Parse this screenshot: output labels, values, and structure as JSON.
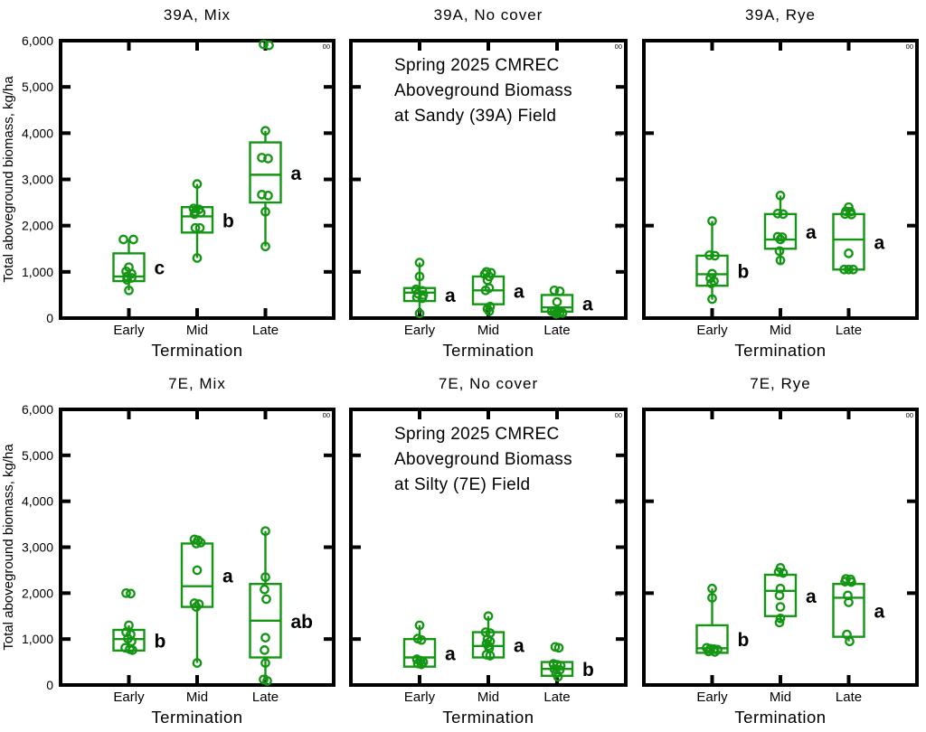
{
  "figure": {
    "accent_green": "#149614",
    "frame_color": "#000000",
    "background": "#ffffff"
  },
  "axes": {
    "x_label": "Termination",
    "x_categories": [
      "Early",
      "Mid",
      "Late"
    ],
    "y_label": "Total aboveground biomass, kg/ha",
    "y_range": [
      0,
      6000
    ],
    "y_tick_values": [
      6000,
      5000,
      4000,
      3000,
      2000,
      1000,
      0
    ],
    "y_tick_labels": [
      "6,000",
      "5,000",
      "4,000",
      "3,000",
      "2,000",
      "1,000",
      "0"
    ],
    "grid": false,
    "legend": "none"
  },
  "annotations": {
    "sandy": [
      "Spring 2025 CMREC",
      "Aboveground Biomass",
      "at Sandy (39A) Field"
    ],
    "silty": [
      "Spring 2025 CMREC",
      "Aboveground Biomass",
      "at Silty (7E) Field"
    ]
  },
  "chart_data": [
    {
      "type": "box",
      "title": "39A, Mix",
      "row": 0,
      "col": 0,
      "show_y_tick_labels": true,
      "show_y_axis_title": true,
      "annotation": null,
      "left_ticks": [
        1000,
        2000,
        3000,
        4000,
        5000
      ],
      "right_ticks": [
        1000,
        2000,
        3000,
        4000,
        5000
      ],
      "right_tiny_labels": [
        [
          6000,
          "00"
        ]
      ],
      "groups": [
        {
          "category": "Early",
          "letter": "c",
          "q1": 800,
          "median": 900,
          "q3": 1400,
          "whisker_low": 600,
          "whisker_high": 1700,
          "points": [
            [
              -6,
              1700
            ],
            [
              5,
              1700
            ],
            [
              0,
              1100
            ],
            [
              -3,
              1010
            ],
            [
              3,
              960
            ],
            [
              -2,
              900
            ],
            [
              3,
              870
            ],
            [
              -2,
              830
            ],
            [
              0,
              600
            ]
          ]
        },
        {
          "category": "Mid",
          "letter": "b",
          "q1": 1850,
          "median": 2200,
          "q3": 2400,
          "whisker_low": 1300,
          "whisker_high": 2900,
          "points": [
            [
              0,
              2900
            ],
            [
              -4,
              2370
            ],
            [
              2,
              2350
            ],
            [
              -2,
              2300
            ],
            [
              4,
              2280
            ],
            [
              -3,
              2250
            ],
            [
              -2,
              1950
            ],
            [
              3,
              1950
            ],
            [
              0,
              1300
            ]
          ]
        },
        {
          "category": "Late",
          "letter": "a",
          "q1": 2500,
          "median": 3100,
          "q3": 3800,
          "whisker_low": 1550,
          "whisker_high": 4050,
          "points": [
            [
              -2,
              5920
            ],
            [
              4,
              5900
            ],
            [
              0,
              4050
            ],
            [
              -4,
              3470
            ],
            [
              3,
              3450
            ],
            [
              -4,
              2670
            ],
            [
              3,
              2650
            ],
            [
              0,
              2300
            ],
            [
              0,
              1550
            ]
          ]
        }
      ]
    },
    {
      "type": "box",
      "title": "39A, No cover",
      "row": 0,
      "col": 1,
      "show_y_tick_labels": false,
      "show_y_axis_title": false,
      "annotation": "sandy",
      "left_ticks": [
        1000,
        3000,
        5000
      ],
      "right_ticks": [
        1000,
        2000,
        3000,
        4000,
        5000
      ],
      "right_tiny_labels": [
        [
          6000,
          "00"
        ],
        [
          4000,
          "00"
        ],
        [
          2000,
          "00"
        ]
      ],
      "groups": [
        {
          "category": "Early",
          "letter": "a",
          "q1": 370,
          "median": 550,
          "q3": 650,
          "whisker_low": 100,
          "whisker_high": 1200,
          "points": [
            [
              0,
              1200
            ],
            [
              0,
              900
            ],
            [
              -4,
              620
            ],
            [
              3,
              590
            ],
            [
              -2,
              530
            ],
            [
              4,
              500
            ],
            [
              -3,
              450
            ],
            [
              3,
              430
            ],
            [
              0,
              100
            ]
          ]
        },
        {
          "category": "Mid",
          "letter": "a",
          "q1": 300,
          "median": 600,
          "q3": 900,
          "whisker_low": 150,
          "whisker_high": 1000,
          "points": [
            [
              -2,
              1000
            ],
            [
              3,
              980
            ],
            [
              -4,
              950
            ],
            [
              1,
              900
            ],
            [
              -1,
              820
            ],
            [
              1,
              650
            ],
            [
              -3,
              600
            ],
            [
              2,
              250
            ],
            [
              -1,
              200
            ],
            [
              1,
              150
            ]
          ]
        },
        {
          "category": "Late",
          "letter": "a",
          "q1": 140,
          "median": 230,
          "q3": 500,
          "whisker_low": 60,
          "whisker_high": 600,
          "points": [
            [
              -3,
              600
            ],
            [
              3,
              580
            ],
            [
              0,
              350
            ],
            [
              -6,
              150
            ],
            [
              -3,
              140
            ],
            [
              0,
              130
            ],
            [
              3,
              120
            ],
            [
              6,
              110
            ],
            [
              -1,
              90
            ]
          ]
        }
      ]
    },
    {
      "type": "box",
      "title": "39A, Rye",
      "row": 0,
      "col": 2,
      "show_y_tick_labels": false,
      "show_y_axis_title": false,
      "annotation": null,
      "left_ticks": [
        2000,
        4000
      ],
      "right_ticks": [
        2000,
        4000
      ],
      "right_tiny_labels": [
        [
          6000,
          "00"
        ]
      ],
      "groups": [
        {
          "category": "Early",
          "letter": "b",
          "q1": 700,
          "median": 950,
          "q3": 1350,
          "whisker_low": 400,
          "whisker_high": 2100,
          "points": [
            [
              0,
              2100
            ],
            [
              -3,
              1360
            ],
            [
              3,
              1350
            ],
            [
              0,
              960
            ],
            [
              -2,
              860
            ],
            [
              2,
              800
            ],
            [
              -1,
              750
            ],
            [
              0,
              410
            ]
          ]
        },
        {
          "category": "Mid",
          "letter": "a",
          "q1": 1500,
          "median": 1700,
          "q3": 2250,
          "whisker_low": 1150,
          "whisker_high": 2650,
          "points": [
            [
              0,
              2650
            ],
            [
              -3,
              2260
            ],
            [
              3,
              2250
            ],
            [
              -3,
              1760
            ],
            [
              2,
              1750
            ],
            [
              0,
              1700
            ],
            [
              -1,
              1450
            ],
            [
              0,
              1250
            ]
          ]
        },
        {
          "category": "Late",
          "letter": "a",
          "q1": 1050,
          "median": 1700,
          "q3": 2250,
          "whisker_low": 1050,
          "whisker_high": 2400,
          "points": [
            [
              0,
              2400
            ],
            [
              -3,
              2310
            ],
            [
              2,
              2300
            ],
            [
              -4,
              2250
            ],
            [
              3,
              2240
            ],
            [
              0,
              1400
            ],
            [
              -5,
              1050
            ],
            [
              0,
              1050
            ],
            [
              5,
              1050
            ]
          ]
        }
      ]
    },
    {
      "type": "box",
      "title": "7E, Mix",
      "row": 1,
      "col": 0,
      "show_y_tick_labels": true,
      "show_y_axis_title": true,
      "annotation": null,
      "left_ticks": [
        1000,
        2000,
        3000,
        4000,
        5000
      ],
      "right_ticks": [
        1000,
        3000,
        5000
      ],
      "right_tiny_labels": [
        [
          6000,
          "00"
        ]
      ],
      "groups": [
        {
          "category": "Early",
          "letter": "b",
          "q1": 750,
          "median": 1000,
          "q3": 1200,
          "whisker_low": 750,
          "whisker_high": 1300,
          "points": [
            [
              -3,
              2000
            ],
            [
              2,
              1990
            ],
            [
              0,
              1300
            ],
            [
              -3,
              1150
            ],
            [
              2,
              1100
            ],
            [
              -1,
              1010
            ],
            [
              3,
              950
            ],
            [
              -4,
              810
            ],
            [
              1,
              780
            ],
            [
              4,
              760
            ]
          ]
        },
        {
          "category": "Mid",
          "letter": "a",
          "q1": 1700,
          "median": 2150,
          "q3": 3080,
          "whisker_low": 480,
          "whisker_high": 3080,
          "points": [
            [
              -3,
              3170
            ],
            [
              1,
              3150
            ],
            [
              4,
              3100
            ],
            [
              -1,
              3080
            ],
            [
              0,
              2500
            ],
            [
              -3,
              1780
            ],
            [
              2,
              1760
            ],
            [
              -1,
              1700
            ],
            [
              0,
              480
            ]
          ]
        },
        {
          "category": "Late",
          "letter": "ab",
          "q1": 600,
          "median": 1400,
          "q3": 2200,
          "whisker_low": 100,
          "whisker_high": 3350,
          "points": [
            [
              0,
              3350
            ],
            [
              0,
              2350
            ],
            [
              -1,
              2080
            ],
            [
              1,
              1870
            ],
            [
              0,
              1030
            ],
            [
              -1,
              760
            ],
            [
              0,
              480
            ],
            [
              -2,
              120
            ],
            [
              2,
              90
            ]
          ]
        }
      ]
    },
    {
      "type": "box",
      "title": "7E, No cover",
      "row": 1,
      "col": 1,
      "show_y_tick_labels": false,
      "show_y_axis_title": false,
      "annotation": "silty",
      "left_ticks": [
        1000,
        3000,
        5000
      ],
      "right_ticks": [
        1000,
        2000,
        3000,
        4000,
        5000
      ],
      "right_tiny_labels": [
        [
          6000,
          "00"
        ],
        [
          4000,
          "00"
        ],
        [
          2000,
          "00"
        ]
      ],
      "groups": [
        {
          "category": "Early",
          "letter": "a",
          "q1": 400,
          "median": 600,
          "q3": 1000,
          "whisker_low": 400,
          "whisker_high": 1300,
          "points": [
            [
              0,
              1300
            ],
            [
              -2,
              1010
            ],
            [
              2,
              980
            ],
            [
              -3,
              560
            ],
            [
              1,
              530
            ],
            [
              4,
              500
            ],
            [
              -2,
              470
            ],
            [
              2,
              450
            ]
          ]
        },
        {
          "category": "Mid",
          "letter": "a",
          "q1": 600,
          "median": 850,
          "q3": 1150,
          "whisker_low": 600,
          "whisker_high": 1500,
          "points": [
            [
              0,
              1500
            ],
            [
              -3,
              1150
            ],
            [
              2,
              1130
            ],
            [
              -1,
              1000
            ],
            [
              2,
              950
            ],
            [
              -2,
              900
            ],
            [
              0,
              850
            ],
            [
              1,
              800
            ],
            [
              -2,
              660
            ],
            [
              2,
              640
            ]
          ]
        },
        {
          "category": "Late",
          "letter": "b",
          "q1": 200,
          "median": 350,
          "q3": 500,
          "whisker_low": 150,
          "whisker_high": 500,
          "points": [
            [
              -2,
              830
            ],
            [
              2,
              810
            ],
            [
              -4,
              460
            ],
            [
              0,
              440
            ],
            [
              4,
              420
            ],
            [
              -3,
              350
            ],
            [
              3,
              330
            ],
            [
              -1,
              250
            ],
            [
              1,
              180
            ]
          ]
        }
      ]
    },
    {
      "type": "box",
      "title": "7E, Rye",
      "row": 1,
      "col": 2,
      "show_y_tick_labels": false,
      "show_y_axis_title": false,
      "annotation": null,
      "left_ticks": [
        2000,
        4000
      ],
      "right_ticks": [
        2000,
        4000
      ],
      "right_tiny_labels": [
        [
          6000,
          "00"
        ]
      ],
      "groups": [
        {
          "category": "Early",
          "letter": "b",
          "q1": 700,
          "median": 800,
          "q3": 1300,
          "whisker_low": 700,
          "whisker_high": 2100,
          "points": [
            [
              0,
              2100
            ],
            [
              0,
              1900
            ],
            [
              -6,
              810
            ],
            [
              -2,
              790
            ],
            [
              2,
              780
            ],
            [
              6,
              770
            ],
            [
              -4,
              730
            ],
            [
              3,
              720
            ]
          ]
        },
        {
          "category": "Mid",
          "letter": "a",
          "q1": 1500,
          "median": 2050,
          "q3": 2400,
          "whisker_low": 1350,
          "whisker_high": 2550,
          "points": [
            [
              0,
              2550
            ],
            [
              -2,
              2460
            ],
            [
              3,
              2440
            ],
            [
              0,
              2100
            ],
            [
              -1,
              1950
            ],
            [
              0,
              1700
            ],
            [
              0,
              1450
            ],
            [
              -1,
              1360
            ]
          ]
        },
        {
          "category": "Late",
          "letter": "a",
          "q1": 1050,
          "median": 1900,
          "q3": 2200,
          "whisker_low": 950,
          "whisker_high": 2300,
          "points": [
            [
              -3,
              2310
            ],
            [
              2,
              2300
            ],
            [
              -4,
              2250
            ],
            [
              3,
              2240
            ],
            [
              -1,
              1950
            ],
            [
              0,
              1800
            ],
            [
              -2,
              1100
            ],
            [
              1,
              950
            ]
          ]
        }
      ]
    }
  ]
}
